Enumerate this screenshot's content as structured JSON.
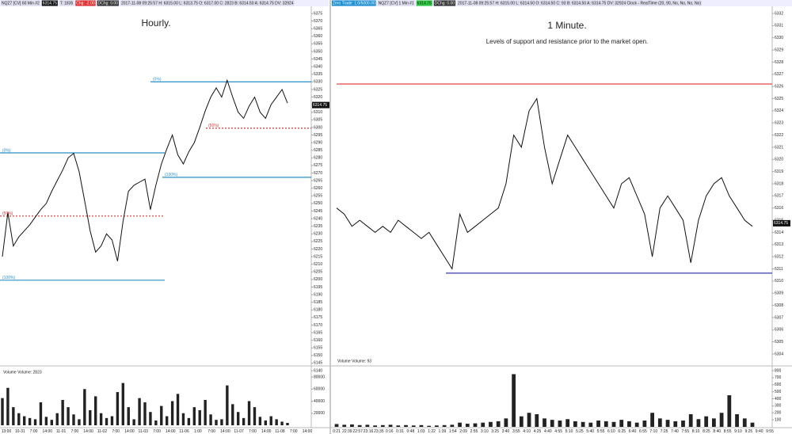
{
  "chart_data": [
    {
      "type": "line",
      "header": [
        "NQZ7 [CV]  60 Min  #2",
        "6314.75",
        "T: 1835",
        "Chg: -2.00",
        "DChg: 0.00",
        "2017-11-08 09:25:57 H: 6315.00 L: 6313.75 O: 6317.00 C: 2823 B: 6314.50 A: 6314.75 DV: 32924"
      ],
      "title": "Hourly.",
      "values": [
        6215,
        6244,
        6222,
        6228,
        6232,
        6236,
        6241,
        6246,
        6250,
        6258,
        6265,
        6272,
        6280,
        6283,
        6271,
        6252,
        6232,
        6218,
        6222,
        6230,
        6226,
        6212,
        6238,
        6258,
        6262,
        6264,
        6266,
        6246,
        6262,
        6276,
        6286,
        6295,
        6282,
        6276,
        6284,
        6290,
        6300,
        6311,
        6320,
        6326,
        6320,
        6331,
        6320,
        6310,
        6306,
        6314,
        6320,
        6310,
        6306,
        6315,
        6320,
        6325,
        6316
      ],
      "volume": [
        45000,
        62000,
        30000,
        20000,
        15000,
        12000,
        10000,
        38000,
        14000,
        9000,
        20000,
        42000,
        30000,
        18000,
        10000,
        60000,
        25000,
        48000,
        20000,
        12000,
        15000,
        55000,
        70000,
        30000,
        10000,
        45000,
        38000,
        22000,
        8000,
        32000,
        15000,
        40000,
        52000,
        20000,
        12000,
        30000,
        25000,
        42000,
        18000,
        9000,
        10000,
        66000,
        35000,
        22000,
        12000,
        40000,
        30000,
        14000,
        8000,
        15000,
        10000,
        6000,
        4000
      ],
      "ylim": [
        6140,
        6375
      ],
      "yticks": [
        6140,
        6145,
        6150,
        6155,
        6160,
        6165,
        6170,
        6175,
        6180,
        6185,
        6190,
        6195,
        6200,
        6205,
        6210,
        6215,
        6220,
        6225,
        6230,
        6235,
        6240,
        6245,
        6250,
        6255,
        6260,
        6265,
        6270,
        6275,
        6280,
        6285,
        6290,
        6295,
        6300,
        6305,
        6310,
        6315,
        6320,
        6325,
        6330,
        6335,
        6340,
        6345,
        6350,
        6355,
        6360,
        6365,
        6370,
        6375
      ],
      "volume_ylim": [
        0,
        80000
      ],
      "volume_yticks": [
        20000,
        40000,
        60000,
        80000
      ],
      "volume_label": "Volume  Volume: 2823",
      "last_price": {
        "value": 6314.75,
        "label": "6314.75"
      },
      "levels": [
        {
          "value": 6330,
          "label": "(0%)",
          "color": "#2a8fc9",
          "dashed": false
        },
        {
          "value": 6299.5,
          "label": "(50%)",
          "color": "#e03030",
          "dashed": true
        },
        {
          "value": 6267.2,
          "label": "(100%)",
          "color": "#2a8fc9",
          "dashed": false
        },
        {
          "value": 6283.3,
          "label": "(0%)",
          "color": "#2a8fc9",
          "dashed": false
        },
        {
          "value": 6241.7,
          "label": "(50%)",
          "color": "#e03030",
          "dashed": true
        },
        {
          "value": 6199.5,
          "label": "(100%)",
          "color": "#2a8fc9",
          "dashed": false
        }
      ],
      "xtick_labels": [
        "13:00",
        "10-31",
        "7:00",
        "14:00",
        "11-01",
        "7:00",
        "14:00",
        "11-02",
        "7:00",
        "14:00",
        "11-03",
        "7:00",
        "14:00",
        "11-06",
        "1:00",
        "7:00",
        "14:00",
        "11-07",
        "7:00",
        "14:00",
        "11-08",
        "7:00",
        "14:00"
      ]
    },
    {
      "type": "line",
      "header": [
        "Zero Trade: 1:0/5000.00",
        "NQZ7 [CV]  1 Min  #1",
        "6314.75",
        "DChg: 0.00",
        "2017-11-08 09:25:57 H: 6315.00 L: 6314.50 O: 6314.50 C: 93 B: 6314.50 A: 6314.75 DV: 32924 Clock - RealTime (20, 90, No, No, No, No)"
      ],
      "title": "1 Minute.",
      "subtitle": "Levels of support and resistance prior to the market open.",
      "values": [
        6316,
        6315.5,
        6314.5,
        6315,
        6314.5,
        6314,
        6314.5,
        6314,
        6315,
        6314.5,
        6314,
        6313.5,
        6314,
        6313,
        6312,
        6311,
        6315.5,
        6314,
        6314.5,
        6315,
        6315.5,
        6316,
        6318,
        6322,
        6321,
        6324,
        6325,
        6321,
        6318,
        6320,
        6322,
        6321,
        6320,
        6319,
        6318,
        6317,
        6316,
        6318,
        6318.5,
        6317,
        6315.5,
        6312,
        6316,
        6317,
        6316,
        6315,
        6311.5,
        6315,
        6317,
        6318,
        6318.5,
        6317,
        6316,
        6315,
        6314.5
      ],
      "volume": [
        40,
        30,
        35,
        25,
        30,
        20,
        25,
        30,
        20,
        25,
        20,
        25,
        15,
        20,
        25,
        30,
        60,
        45,
        50,
        60,
        70,
        80,
        120,
        750,
        150,
        200,
        180,
        120,
        100,
        90,
        110,
        80,
        70,
        60,
        90,
        80,
        70,
        100,
        80,
        60,
        90,
        200,
        120,
        100,
        80,
        90,
        180,
        110,
        150,
        120,
        200,
        450,
        180,
        120,
        60
      ],
      "ylim": [
        6304,
        6332
      ],
      "yticks": [
        6304,
        6305,
        6306,
        6307,
        6308,
        6309,
        6310,
        6311,
        6312,
        6313,
        6314,
        6315,
        6316,
        6317,
        6318,
        6319,
        6320,
        6321,
        6322,
        6323,
        6324,
        6325,
        6326,
        6327,
        6328,
        6329,
        6330,
        6331,
        6332
      ],
      "volume_ylim": [
        0,
        800
      ],
      "volume_yticks": [
        100,
        200,
        300,
        400,
        500,
        600,
        700,
        800
      ],
      "volume_label": "Volume  Volume: 93",
      "last_price": {
        "value": 6314.75,
        "label": "6314.75"
      },
      "levels": [
        {
          "value": 6326.2,
          "color": "#e03030",
          "dashed": false
        },
        {
          "value": 6310.65,
          "color": "#3a3ab0",
          "dashed": false
        }
      ],
      "xtick_labels": [
        "0:21",
        "22:39",
        "22:57",
        "23:16",
        "23:35",
        "0:16",
        "0:31",
        "0:48",
        "1:03",
        "1:22",
        "1:39",
        "1:54",
        "2:09",
        "2:55",
        "3:10",
        "3:25",
        "3:40",
        "3:55",
        "4:10",
        "4:25",
        "4:40",
        "4:55",
        "5:10",
        "5:25",
        "5:40",
        "5:55",
        "6:10",
        "6:25",
        "6:40",
        "6:55",
        "7:10",
        "7:25",
        "7:40",
        "7:55",
        "8:10",
        "8:25",
        "8:40",
        "8:55",
        "9:10",
        "9:25",
        "9:40",
        "9:55"
      ]
    }
  ]
}
